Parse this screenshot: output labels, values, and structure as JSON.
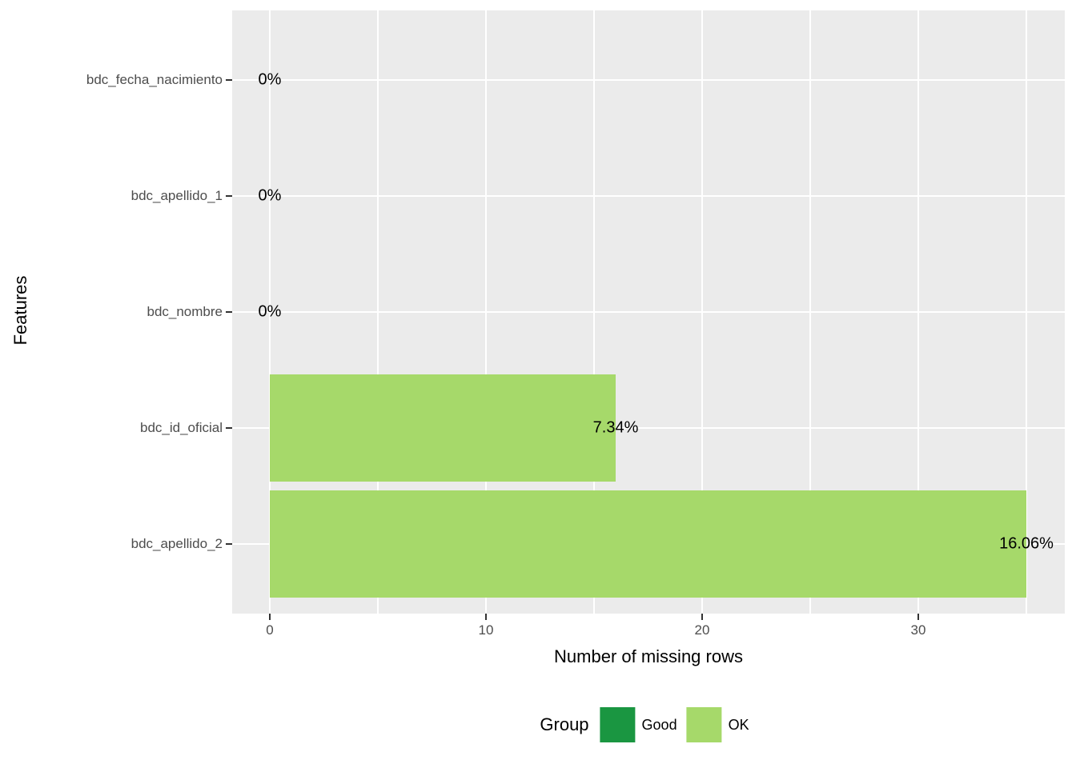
{
  "chart_data": {
    "type": "bar",
    "orientation": "horizontal",
    "title": "",
    "xlabel": "Number of missing rows",
    "ylabel": "Features",
    "categories": [
      "bdc_fecha_nacimiento",
      "bdc_apellido_1",
      "bdc_nombre",
      "bdc_id_oficial",
      "bdc_apellido_2"
    ],
    "series": [
      {
        "name": "missing_rows",
        "values": [
          0,
          0,
          0,
          16,
          35
        ]
      }
    ],
    "bar_labels": [
      "0%",
      "0%",
      "0%",
      "7.34%",
      "16.06%"
    ],
    "bar_groups": [
      "Good",
      "Good",
      "Good",
      "OK",
      "OK"
    ],
    "x_ticks": [
      0,
      10,
      20,
      30
    ],
    "x_minor_gridlines": [
      5,
      15,
      25,
      35
    ],
    "xlim": [
      -1.75,
      36.75
    ],
    "grid": true,
    "legend": {
      "title": "Group",
      "position": "bottom",
      "entries": [
        {
          "label": "Good",
          "color": "#1a9641"
        },
        {
          "label": "OK",
          "color": "#a6d96a"
        }
      ]
    }
  },
  "colors": {
    "page_background": "#ffffff",
    "panel_background": "#ebebeb",
    "gridline": "#ffffff",
    "axis_text": "#4d4d4d",
    "title_text": "#000000",
    "tick_mark": "#333333"
  }
}
